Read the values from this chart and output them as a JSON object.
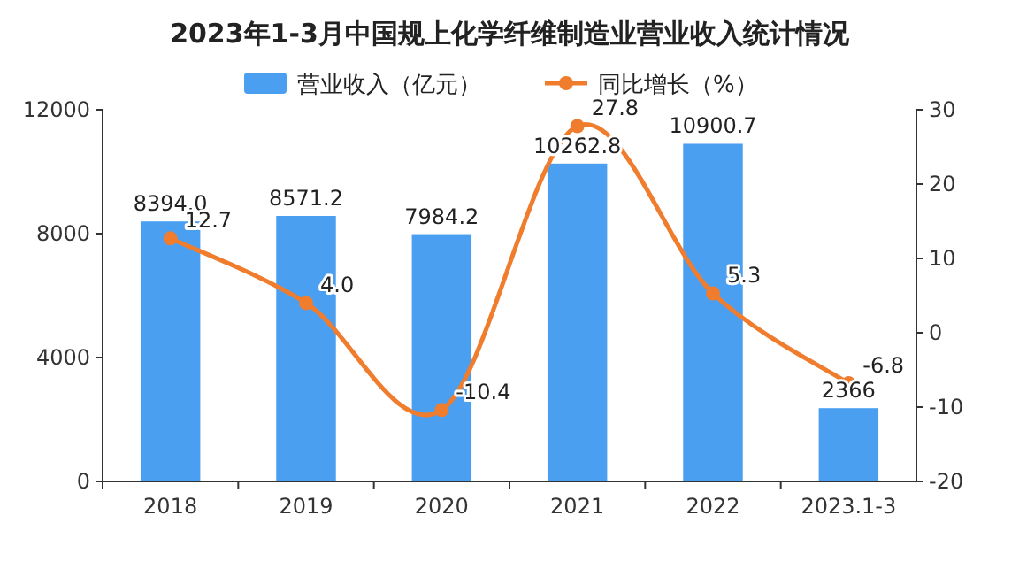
{
  "chart_data": {
    "type": "bar",
    "title": "2023年1-3月中国规上化学纤维制造业营业收入统计情况",
    "categories": [
      "2018",
      "2019",
      "2020",
      "2021",
      "2022",
      "2023.1-3"
    ],
    "series": [
      {
        "name": "营业收入（亿元）",
        "color": "#4b9ff0",
        "values": [
          8394.0,
          8571.2,
          7984.2,
          10262.8,
          10900.7,
          2366
        ],
        "value_labels": [
          "8394.0",
          "8571.2",
          "7984.2",
          "10262.8",
          "10900.7",
          "2366"
        ]
      },
      {
        "name": "同比增长（%）",
        "type": "line",
        "axis": "y2",
        "color": "#f07d2e",
        "values": [
          12.7,
          4.0,
          -10.4,
          27.8,
          5.3,
          -6.8
        ],
        "value_labels": [
          "12.7",
          "4.0",
          "-10.4",
          "27.8",
          "5.3",
          "-6.8"
        ]
      }
    ],
    "marker": "circle",
    "ylim": [
      0,
      12000
    ],
    "yticks": [
      0,
      4000,
      8000,
      12000
    ],
    "y2lim": [
      -20,
      30
    ],
    "y2ticks": [
      -20,
      -10,
      0,
      10,
      20,
      30
    ],
    "legend": "top",
    "grid": false
  }
}
